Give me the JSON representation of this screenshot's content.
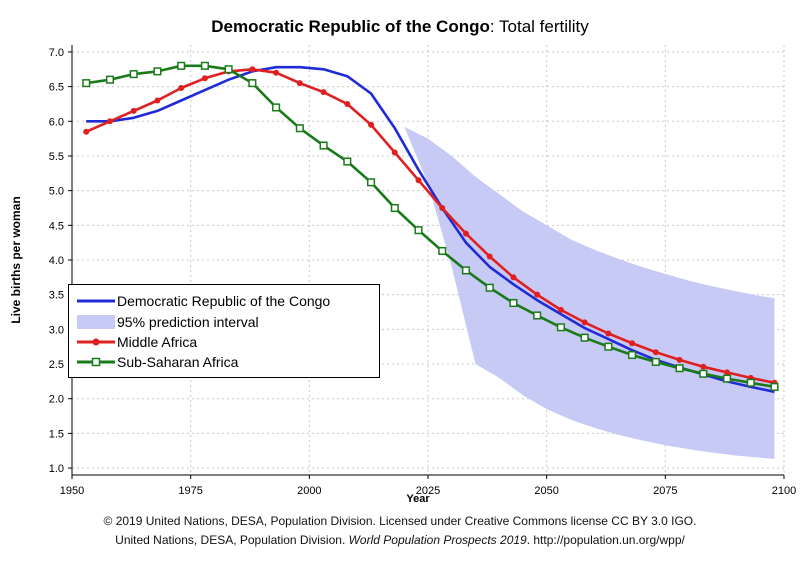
{
  "title": {
    "country": "Democratic Republic of the Congo",
    "indicator": ": Total fertility"
  },
  "footer": {
    "line1": "© 2019 United Nations, DESA, Population Division. Licensed under Creative Commons license CC BY 3.0 IGO.",
    "line2_prefix": "United Nations, DESA, Population Division. ",
    "line2_italic": "World Population Prospects 2019",
    "line2_suffix": ". http://population.un.org/wpp/"
  },
  "legend": {
    "items": [
      {
        "label": "Democratic Republic of the Congo",
        "color": "#1f2bd6",
        "kind": "line"
      },
      {
        "label": "95% prediction interval",
        "color": "#c8caf6",
        "kind": "band"
      },
      {
        "label": "Middle Africa",
        "color": "#e02020",
        "kind": "line-circle"
      },
      {
        "label": "Sub-Saharan Africa",
        "color": "#1a7a1a",
        "kind": "line-square"
      }
    ]
  },
  "chart_data": {
    "type": "line",
    "title": "Democratic Republic of the Congo: Total fertility",
    "xlabel": "Year",
    "ylabel": "Live births per woman",
    "xlim": [
      1950,
      2100
    ],
    "ylim": [
      0.9,
      7.1
    ],
    "xticks": [
      1950,
      1975,
      2000,
      2025,
      2050,
      2075,
      2100
    ],
    "yticks": [
      1.0,
      1.5,
      2.0,
      2.5,
      3.0,
      3.5,
      4.0,
      4.5,
      5.0,
      5.5,
      6.0,
      6.5,
      7.0
    ],
    "grid": true,
    "legend_position": "lower-left",
    "series": [
      {
        "name": "Democratic Republic of the Congo",
        "color": "#1f2bd6",
        "marker": "none",
        "x": [
          1953,
          1958,
          1963,
          1968,
          1973,
          1978,
          1983,
          1988,
          1993,
          1998,
          2003,
          2008,
          2013,
          2018,
          2023,
          2028,
          2033,
          2038,
          2043,
          2048,
          2053,
          2058,
          2063,
          2068,
          2073,
          2078,
          2083,
          2088,
          2093,
          2098
        ],
        "values": [
          6.0,
          6.0,
          6.05,
          6.15,
          6.3,
          6.45,
          6.6,
          6.72,
          6.78,
          6.78,
          6.75,
          6.65,
          6.4,
          5.9,
          5.3,
          4.75,
          4.25,
          3.9,
          3.65,
          3.42,
          3.22,
          3.02,
          2.86,
          2.7,
          2.56,
          2.45,
          2.35,
          2.25,
          2.17,
          2.1
        ]
      },
      {
        "name": "Middle Africa",
        "color": "#e02020",
        "marker": "circle",
        "x": [
          1953,
          1958,
          1963,
          1968,
          1973,
          1978,
          1983,
          1988,
          1993,
          1998,
          2003,
          2008,
          2013,
          2018,
          2023,
          2028,
          2033,
          2038,
          2043,
          2048,
          2053,
          2058,
          2063,
          2068,
          2073,
          2078,
          2083,
          2088,
          2093,
          2098
        ],
        "values": [
          5.85,
          6.0,
          6.15,
          6.3,
          6.48,
          6.62,
          6.72,
          6.75,
          6.7,
          6.55,
          6.42,
          6.25,
          5.95,
          5.55,
          5.15,
          4.75,
          4.38,
          4.05,
          3.75,
          3.5,
          3.28,
          3.1,
          2.94,
          2.8,
          2.67,
          2.56,
          2.46,
          2.38,
          2.3,
          2.23
        ]
      },
      {
        "name": "Sub-Saharan Africa",
        "color": "#1a7a1a",
        "marker": "square",
        "x": [
          1953,
          1958,
          1963,
          1968,
          1973,
          1978,
          1983,
          1988,
          1993,
          1998,
          2003,
          2008,
          2013,
          2018,
          2023,
          2028,
          2033,
          2038,
          2043,
          2048,
          2053,
          2058,
          2063,
          2068,
          2073,
          2078,
          2083,
          2088,
          2093,
          2098
        ],
        "values": [
          6.55,
          6.6,
          6.68,
          6.72,
          6.8,
          6.8,
          6.75,
          6.55,
          6.2,
          5.9,
          5.65,
          5.42,
          5.12,
          4.75,
          4.43,
          4.13,
          3.85,
          3.6,
          3.38,
          3.2,
          3.03,
          2.88,
          2.75,
          2.63,
          2.53,
          2.44,
          2.36,
          2.29,
          2.23,
          2.17
        ]
      }
    ],
    "band": {
      "name": "95% prediction interval",
      "color": "#c8caf6",
      "x": [
        2020,
        2025,
        2030,
        2035,
        2040,
        2045,
        2050,
        2055,
        2060,
        2065,
        2070,
        2075,
        2080,
        2085,
        2090,
        2095,
        2098
      ],
      "upper": [
        5.92,
        5.75,
        5.5,
        5.2,
        4.95,
        4.7,
        4.5,
        4.3,
        4.15,
        4.02,
        3.9,
        3.8,
        3.7,
        3.62,
        3.55,
        3.48,
        3.45
      ],
      "lower": [
        5.92,
        5.1,
        3.9,
        2.5,
        2.3,
        2.05,
        1.85,
        1.7,
        1.58,
        1.48,
        1.4,
        1.33,
        1.27,
        1.22,
        1.18,
        1.15,
        1.13
      ]
    }
  }
}
